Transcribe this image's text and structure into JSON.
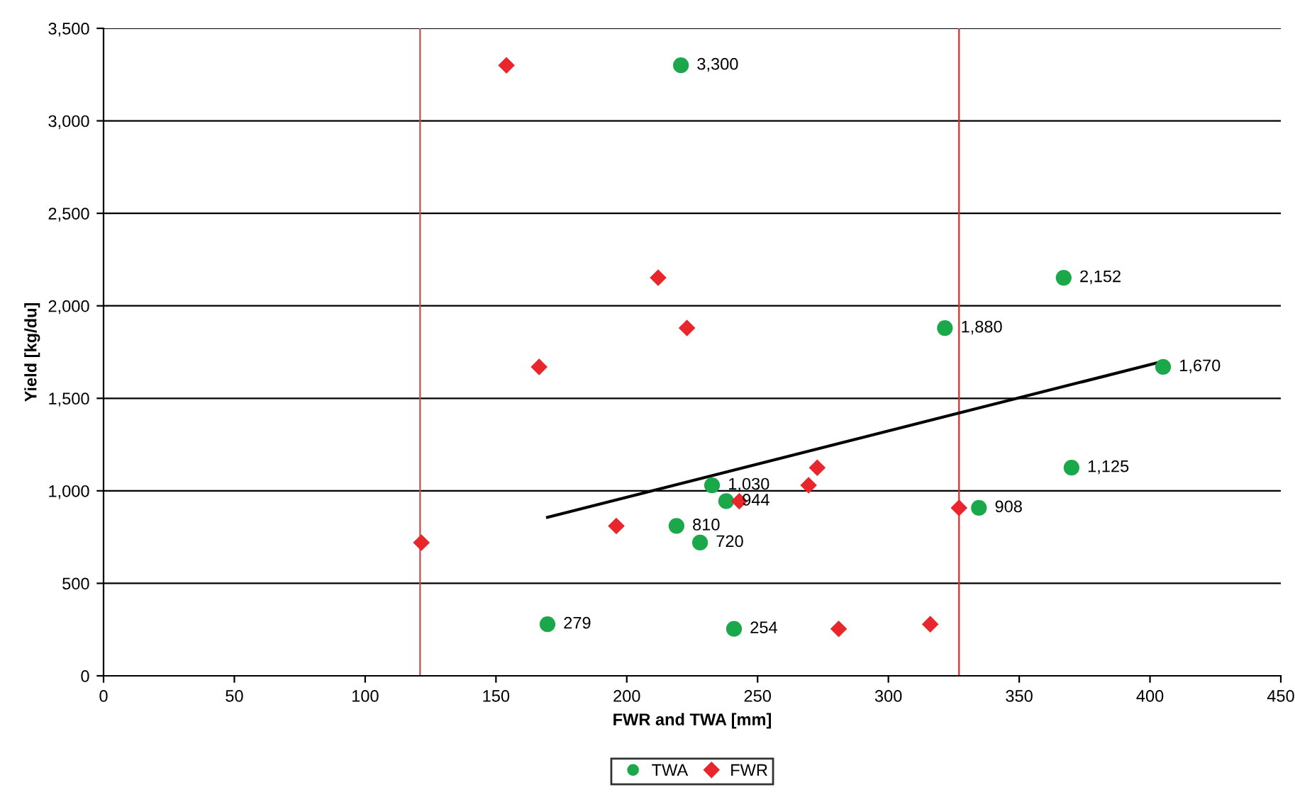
{
  "chart_data": {
    "type": "scatter",
    "xlabel": "FWR and TWA [mm]",
    "ylabel": "Yield [kg/du]",
    "xlim": [
      0,
      450
    ],
    "xticks": [
      0,
      50,
      100,
      150,
      200,
      250,
      300,
      350,
      400,
      450
    ],
    "ylim": [
      0,
      3500
    ],
    "yticks": [
      {
        "value": 0,
        "label": "0"
      },
      {
        "value": 500,
        "label": "500"
      },
      {
        "value": 1000,
        "label": "1,000"
      },
      {
        "value": 1500,
        "label": "1,500"
      },
      {
        "value": 2000,
        "label": "2,000"
      },
      {
        "value": 2500,
        "label": "2,500"
      },
      {
        "value": 3000,
        "label": "3,000"
      },
      {
        "value": 3500,
        "label": "3,500"
      }
    ],
    "grid": "y",
    "legend": "bottom",
    "series": [
      {
        "name": "TWA",
        "marker": "circle",
        "color": "#1aa84b",
        "x": [
          220.7,
          367,
          321.6,
          405,
          370,
          232.6,
          238,
          334.6,
          219,
          228,
          169.7,
          241
        ],
        "values": [
          3300,
          2152,
          1880,
          1670,
          1125,
          1030,
          944,
          908,
          810,
          720,
          279,
          254
        ],
        "value_labels": [
          "3,300",
          "2,152",
          "1,880",
          "1,670",
          "1,125",
          "1,030",
          "944",
          "908",
          "810",
          "720",
          "279",
          "254"
        ]
      },
      {
        "name": "FWR",
        "marker": "diamond",
        "color": "#e8262b",
        "x": [
          154,
          212,
          223,
          166.5,
          272.8,
          269.5,
          243,
          327,
          196,
          121.5,
          281,
          316
        ],
        "values": [
          3300,
          2152,
          1880,
          1670,
          1125,
          1030,
          944,
          908,
          810,
          720,
          254,
          279
        ]
      },
      {
        "type": "line",
        "color": "#000000",
        "x": [
          169.7,
          405
        ],
        "values": [
          857,
          1700
        ]
      }
    ],
    "ref_lines": [
      {
        "axis": "x",
        "value": 121,
        "color": "#c0504d"
      },
      {
        "axis": "x",
        "value": 327,
        "color": "#e8262b"
      }
    ]
  }
}
